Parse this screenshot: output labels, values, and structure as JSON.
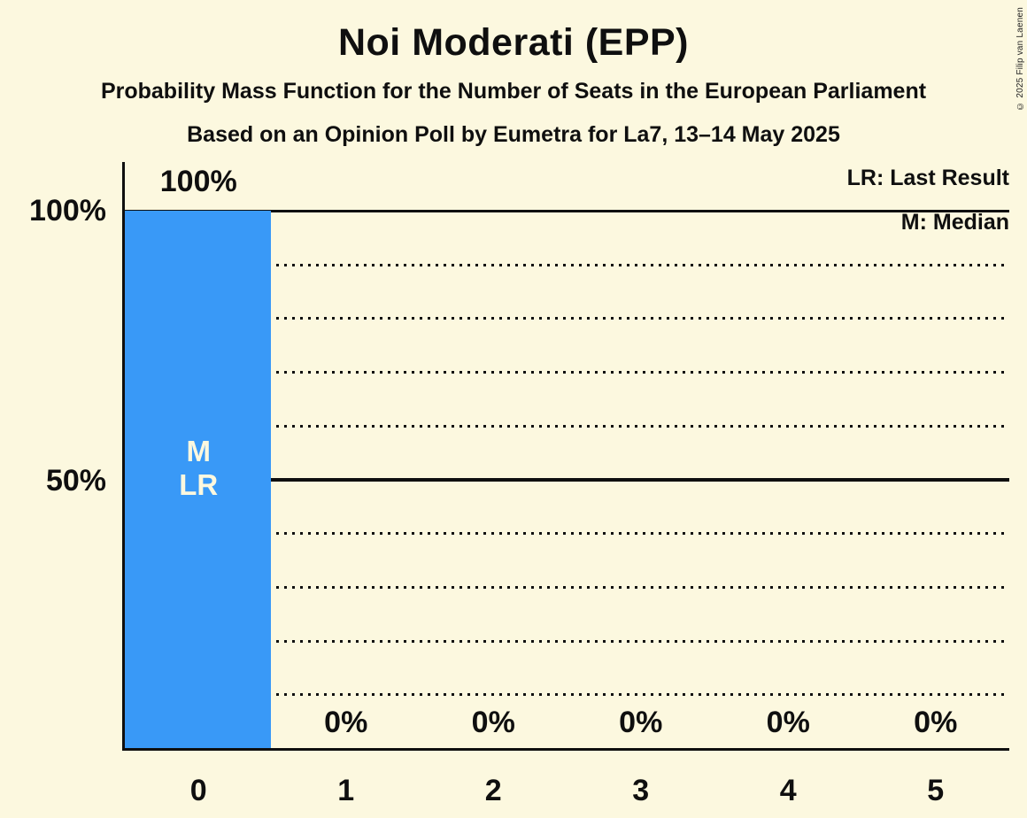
{
  "copyright": "© 2025 Filip van Laenen",
  "colors": {
    "background": "#FCF8DF",
    "bar": "#3999F7",
    "text": "#0F0F0F",
    "bar_label_text": "#FCF8DF"
  },
  "chart_data": {
    "type": "bar",
    "title": "Noi Moderati (EPP)",
    "subtitle": "Probability Mass Function for the Number of Seats in the European Parliament",
    "subtitle2": "Based on an Opinion Poll by Eumetra for La7, 13–14 May 2025",
    "categories": [
      "0",
      "1",
      "2",
      "3",
      "4",
      "5"
    ],
    "values": [
      100,
      0,
      0,
      0,
      0,
      0
    ],
    "bar_labels": [
      "100%",
      "0%",
      "0%",
      "0%",
      "0%",
      "0%"
    ],
    "bar_annotations": [
      [
        "M",
        "LR"
      ],
      [],
      [],
      [],
      [],
      []
    ],
    "ylim": [
      0,
      100
    ],
    "ytick_values": [
      100,
      50
    ],
    "ytick_labels": [
      "100%",
      "50%"
    ],
    "solid_gridlines": [
      100,
      50
    ],
    "dotted_gridlines": [
      90,
      80,
      70,
      60,
      40,
      30,
      20,
      10
    ],
    "grid": "horizontal only",
    "legend_position": "top-right",
    "legend": [
      "LR: Last Result",
      "M: Median"
    ],
    "xlabel": "",
    "ylabel": ""
  }
}
